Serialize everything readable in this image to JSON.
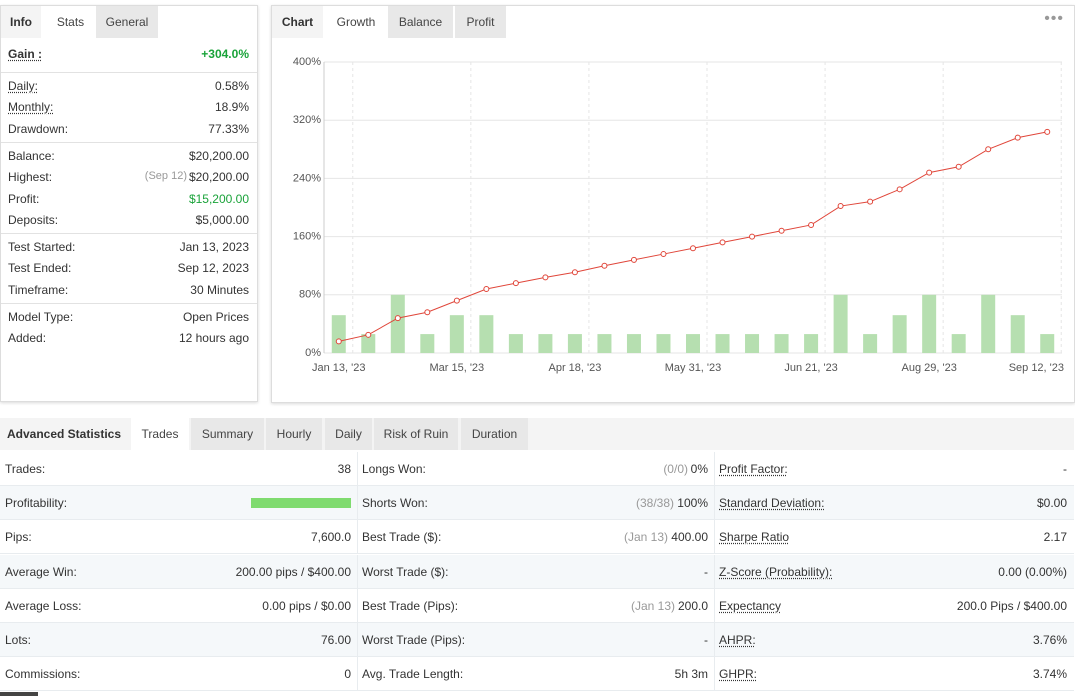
{
  "left": {
    "tabs": [
      "Info",
      "Stats",
      "General"
    ],
    "sections": [
      [
        {
          "label": "Gain :",
          "value": "+304.0%"
        }
      ],
      [
        {
          "label": "Daily:",
          "value": "0.58%"
        },
        {
          "label": "Monthly:",
          "value": "18.9%"
        },
        {
          "label": "Drawdown:",
          "value": "77.33%"
        }
      ],
      [
        {
          "label": "Balance:",
          "value": "$20,200.00"
        },
        {
          "label": "Highest:",
          "note": "(Sep 12)",
          "value": "$20,200.00"
        },
        {
          "label": "Profit:",
          "value": "$15,200.00"
        },
        {
          "label": "Deposits:",
          "value": "$5,000.00"
        }
      ],
      [
        {
          "label": "Test Started:",
          "value": "Jan 13, 2023"
        },
        {
          "label": "Test Ended:",
          "value": "Sep 12, 2023"
        },
        {
          "label": "Timeframe:",
          "value": "30 Minutes"
        }
      ],
      [
        {
          "label": "Model Type:",
          "value": "Open Prices"
        },
        {
          "label": "Added:",
          "value": "12 hours ago"
        }
      ]
    ]
  },
  "chart_tabs": [
    "Chart",
    "Growth",
    "Balance",
    "Profit"
  ],
  "chart_data": {
    "type": "line",
    "categories": [
      "Jan 13, '23",
      null,
      null,
      null,
      "Mar 15, '23",
      null,
      null,
      null,
      "Apr 18, '23",
      null,
      null,
      null,
      "May 31, '23",
      null,
      null,
      null,
      "Jun 21, '23",
      null,
      null,
      null,
      "Aug 29, '23",
      null,
      null,
      null,
      "Sep 12, '23"
    ],
    "series": [
      {
        "type": "bar",
        "color": "#b6dfb0",
        "values": [
          52,
          26,
          80,
          26,
          52,
          52,
          26,
          26,
          26,
          26,
          26,
          26,
          26,
          26,
          26,
          26,
          26,
          80,
          26,
          52,
          80,
          26,
          80,
          52,
          26
        ]
      },
      {
        "type": "line",
        "color": "#e0463a",
        "values": [
          16,
          25,
          48,
          56,
          72,
          88,
          96,
          104,
          111,
          120,
          128,
          136,
          144,
          152,
          160,
          168,
          176,
          202,
          208,
          225,
          248,
          256,
          280,
          296,
          304
        ]
      }
    ],
    "ylim": [
      0,
      400
    ],
    "yticks": [
      {
        "value": 0,
        "label": "0%"
      },
      {
        "value": 80,
        "label": "80%"
      },
      {
        "value": 160,
        "label": "160%"
      },
      {
        "value": 240,
        "label": "240%"
      },
      {
        "value": 320,
        "label": "320%"
      },
      {
        "value": 400,
        "label": "400%"
      }
    ],
    "grid": true
  },
  "stats": {
    "tabs": [
      "Advanced Statistics",
      "Trades",
      "Summary",
      "Hourly",
      "Daily",
      "Risk of Ruin",
      "Duration"
    ],
    "rows": [
      [
        {
          "label": "Trades:",
          "value": "38"
        },
        {
          "label": "Longs Won:",
          "note": "(0/0)",
          "value": "0%"
        },
        {
          "label": "Profit Factor:",
          "value": "-"
        }
      ],
      [
        {
          "label": "Profitability:"
        },
        {
          "label": "Shorts Won:",
          "note": "(38/38)",
          "value": "100%"
        },
        {
          "label": "Standard Deviation:",
          "value": "$0.00"
        }
      ],
      [
        {
          "label": "Pips:",
          "value": "7,600.0"
        },
        {
          "label": "Best Trade ($):",
          "note": "(Jan 13)",
          "value": "400.00"
        },
        {
          "label": "Sharpe Ratio",
          "value": "2.17"
        }
      ],
      [
        {
          "label": "Average Win:",
          "value": "200.00 pips / $400.00"
        },
        {
          "label": "Worst Trade ($):",
          "value": "-"
        },
        {
          "label": "Z-Score (Probability):",
          "value": "0.00 (0.00%)"
        }
      ],
      [
        {
          "label": "Average Loss:",
          "value": "0.00 pips / $0.00"
        },
        {
          "label": "Best Trade (Pips):",
          "note": "(Jan 13)",
          "value": "200.0"
        },
        {
          "label": "Expectancy",
          "value": "200.0 Pips / $400.00"
        }
      ],
      [
        {
          "label": "Lots:",
          "value": "76.00"
        },
        {
          "label": "Worst Trade (Pips):",
          "value": "-"
        },
        {
          "label": "AHPR:",
          "value": "3.76%"
        }
      ],
      [
        {
          "label": "Commissions:",
          "value": "0"
        },
        {
          "label": "Avg. Trade Length:",
          "value": "5h 3m"
        },
        {
          "label": "GHPR:",
          "value": "3.74%"
        }
      ]
    ]
  }
}
